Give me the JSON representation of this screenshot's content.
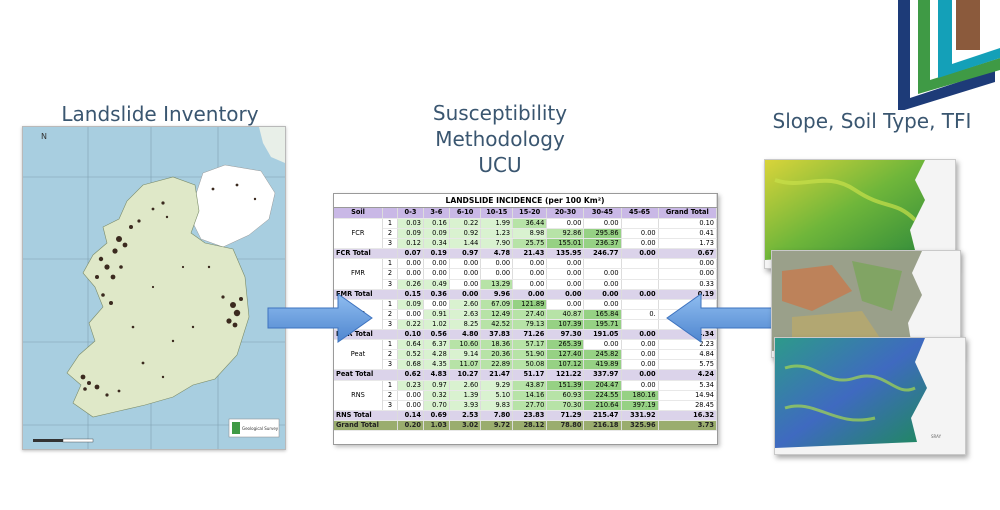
{
  "headings": {
    "inventory": "Landslide Inventory",
    "methodology": [
      "Susceptibility",
      "Methodology",
      "UCU"
    ],
    "factors": "Slope, Soil Type, TFI"
  },
  "map": {
    "north_label": "N",
    "legend_text": "Geological Survey"
  },
  "table": {
    "title": "LANDSLIDE INCIDENCE (per 100 Km²)",
    "columns": [
      "Soil",
      "",
      "0-3",
      "3-6",
      "6-10",
      "10-15",
      "15-20",
      "20-30",
      "30-45",
      "45-65",
      "Grand Total"
    ],
    "groups": [
      {
        "soil": "FCR",
        "rows": [
          {
            "cls": "1",
            "values": [
              "0.03",
              "0.16",
              "0.22",
              "1.99",
              "36.44",
              "0.00",
              "0.00",
              "",
              "0.10"
            ]
          },
          {
            "cls": "2",
            "values": [
              "0.09",
              "0.09",
              "0.92",
              "1.23",
              "8.98",
              "92.86",
              "295.86",
              "0.00",
              "0.41"
            ]
          },
          {
            "cls": "3",
            "values": [
              "0.12",
              "0.34",
              "1.44",
              "7.90",
              "25.75",
              "155.01",
              "236.37",
              "0.00",
              "1.73"
            ]
          }
        ],
        "total_label": "FCR Total",
        "total": [
          "0.07",
          "0.19",
          "0.97",
          "4.78",
          "21.43",
          "135.95",
          "246.77",
          "0.00",
          "0.67"
        ]
      },
      {
        "soil": "FMR",
        "rows": [
          {
            "cls": "1",
            "values": [
              "0.00",
              "0.00",
              "0.00",
              "0.00",
              "0.00",
              "0.00",
              "",
              "",
              "0.00"
            ]
          },
          {
            "cls": "2",
            "values": [
              "0.00",
              "0.00",
              "0.00",
              "0.00",
              "0.00",
              "0.00",
              "0.00",
              "",
              "0.00"
            ]
          },
          {
            "cls": "3",
            "values": [
              "0.26",
              "0.49",
              "0.00",
              "13.29",
              "0.00",
              "0.00",
              "0.00",
              "",
              "0.33"
            ]
          }
        ],
        "total_label": "FMR Total",
        "total": [
          "0.15",
          "0.36",
          "0.00",
          "9.96",
          "0.00",
          "0.00",
          "0.00",
          "0.00",
          "0.19"
        ]
      },
      {
        "soil": "MCR",
        "rows": [
          {
            "cls": "1",
            "values": [
              "0.09",
              "0.00",
              "2.60",
              "67.09",
              "121.89",
              "0.00",
              "0.00",
              "",
              ""
            ]
          },
          {
            "cls": "2",
            "values": [
              "0.00",
              "0.91",
              "2.63",
              "12.49",
              "27.40",
              "40.87",
              "165.84",
              "0.",
              ""
            ]
          },
          {
            "cls": "3",
            "values": [
              "0.22",
              "1.02",
              "8.25",
              "42.52",
              "79.13",
              "107.39",
              "195.71",
              "",
              ""
            ]
          }
        ],
        "total_label": "MCR Total",
        "total": [
          "0.10",
          "0.56",
          "4.80",
          "37.83",
          "71.26",
          "97.30",
          "191.05",
          "0.00",
          "4.34"
        ]
      },
      {
        "soil": "Peat",
        "rows": [
          {
            "cls": "1",
            "values": [
              "0.64",
              "6.37",
              "10.60",
              "18.36",
              "57.17",
              "265.39",
              "0.00",
              "0.00",
              "2.23"
            ]
          },
          {
            "cls": "2",
            "values": [
              "0.52",
              "4.28",
              "9.14",
              "20.36",
              "51.90",
              "127.40",
              "245.82",
              "0.00",
              "4.84"
            ]
          },
          {
            "cls": "3",
            "values": [
              "0.68",
              "4.35",
              "11.07",
              "22.89",
              "50.08",
              "107.12",
              "419.89",
              "0.00",
              "5.75"
            ]
          }
        ],
        "total_label": "Peat Total",
        "total": [
          "0.62",
          "4.83",
          "10.27",
          "21.47",
          "51.17",
          "121.22",
          "337.97",
          "0.00",
          "4.24"
        ]
      },
      {
        "soil": "RNS",
        "rows": [
          {
            "cls": "1",
            "values": [
              "0.23",
              "0.97",
              "2.60",
              "9.29",
              "43.87",
              "151.39",
              "204.47",
              "0.00",
              "5.34"
            ]
          },
          {
            "cls": "2",
            "values": [
              "0.00",
              "0.32",
              "1.39",
              "5.10",
              "14.16",
              "60.93",
              "224.55",
              "180.16",
              "14.94"
            ]
          },
          {
            "cls": "3",
            "values": [
              "0.00",
              "0.70",
              "3.93",
              "9.83",
              "27.70",
              "70.30",
              "210.64",
              "397.19",
              "28.45"
            ]
          }
        ],
        "total_label": "RNS Total",
        "total": [
          "0.14",
          "0.69",
          "2.53",
          "7.80",
          "23.83",
          "71.29",
          "215.47",
          "331.92",
          "16.32"
        ]
      }
    ],
    "grand_label": "Grand Total",
    "grand": [
      "0.20",
      "1.03",
      "3.02",
      "9.72",
      "28.12",
      "78.80",
      "216.18",
      "325.96",
      "3.73"
    ]
  },
  "colors": {
    "heading_text": "#3a5670",
    "table_header": "#c9b8e6",
    "total_row": "#dbd3ea",
    "grand_row": "#9aad6e",
    "arrow": "#6a9fdc",
    "logo_navy": "#1d3b78",
    "logo_green": "#3f9a45",
    "logo_teal": "#14a0b8",
    "logo_brown": "#8b5a3c"
  },
  "icons": {
    "arrows": [
      "arrow-right-icon",
      "arrow-left-icon"
    ],
    "logo": "gsi-logo-icon"
  }
}
